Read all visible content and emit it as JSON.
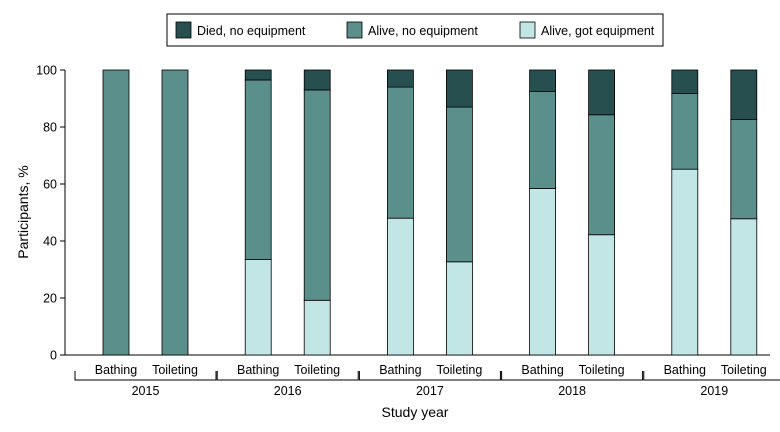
{
  "chart_data": {
    "type": "bar",
    "stacked": true,
    "title": "",
    "xlabel": "Study year",
    "ylabel": "Participants, %",
    "ylim": [
      0,
      100
    ],
    "yticks": [
      0,
      20,
      40,
      60,
      80,
      100
    ],
    "legend_position": "top-center",
    "groups": [
      {
        "year": "2015",
        "categories": [
          "Bathing",
          "Toileting"
        ]
      },
      {
        "year": "2016",
        "categories": [
          "Bathing",
          "Toileting"
        ]
      },
      {
        "year": "2017",
        "categories": [
          "Bathing",
          "Toileting"
        ]
      },
      {
        "year": "2018",
        "categories": [
          "Bathing",
          "Toileting"
        ]
      },
      {
        "year": "2019",
        "categories": [
          "Bathing",
          "Toileting"
        ]
      }
    ],
    "series": [
      {
        "name": "Alive, got equipment",
        "color": "#c2e5e5",
        "values": [
          0,
          0,
          33.5,
          19.2,
          48,
          32.7,
          58.4,
          42.2,
          65.2,
          47.8
        ]
      },
      {
        "name": "Alive, no equipment",
        "color": "#5b8f8c",
        "values": [
          100,
          100,
          63,
          73.8,
          46,
          54.3,
          34.1,
          42.1,
          26.6,
          34.8
        ]
      },
      {
        "name": "Died, no equipment",
        "color": "#284f4f",
        "values": [
          0,
          0,
          3.5,
          7,
          6,
          13,
          7.5,
          15.7,
          8.2,
          17.4
        ]
      }
    ],
    "legend_order": [
      "Died, no equipment",
      "Alive, no equipment",
      "Alive, got equipment"
    ]
  }
}
